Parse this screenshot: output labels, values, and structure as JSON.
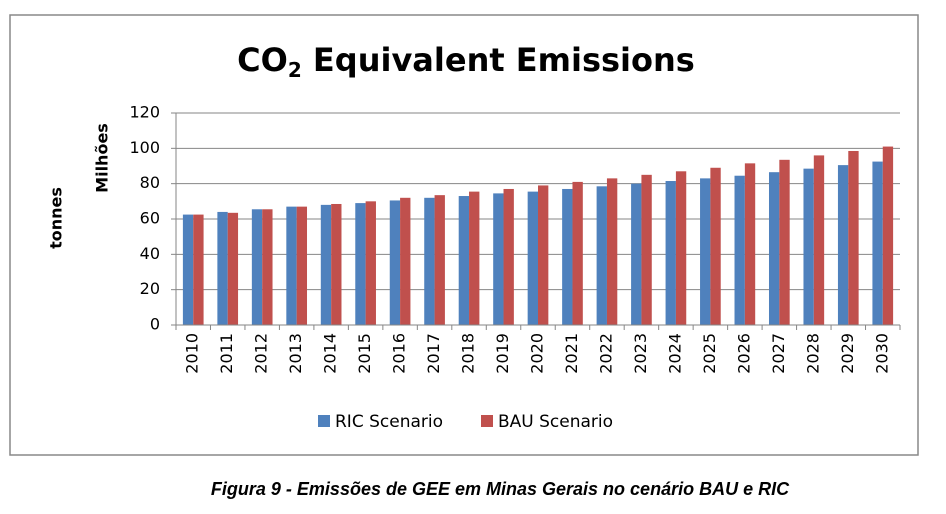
{
  "chart_data": {
    "type": "bar",
    "title_parts": [
      "CO",
      "2",
      " Equivalent Emissions"
    ],
    "y_label": "Milhões",
    "y_outer_label": "tonnes",
    "caption": "Figura 9 - Emissões de GEE em Minas Gerais no cenário BAU e RIC",
    "categories": [
      "2010",
      "2011",
      "2012",
      "2013",
      "2014",
      "2015",
      "2016",
      "2017",
      "2018",
      "2019",
      "2020",
      "2021",
      "2022",
      "2023",
      "2024",
      "2025",
      "2026",
      "2027",
      "2028",
      "2029",
      "2030"
    ],
    "series": [
      {
        "name": "RIC Scenario",
        "color": "#4f81bd",
        "values": [
          62.5,
          64,
          65.5,
          67,
          68,
          69,
          70.5,
          72,
          73,
          74.5,
          75.5,
          77,
          78.5,
          80,
          81.5,
          83,
          84.5,
          86.5,
          88.5,
          90.5,
          92.5
        ]
      },
      {
        "name": "BAU Scenario",
        "color": "#c0504d",
        "values": [
          62.5,
          63.5,
          65.5,
          67,
          68.5,
          70,
          72,
          73.5,
          75.5,
          77,
          79,
          81,
          83,
          85,
          87,
          89,
          91.5,
          93.5,
          96,
          98.5,
          101
        ]
      }
    ],
    "ylim": [
      0,
      120
    ],
    "yticks": [
      0,
      20,
      40,
      60,
      80,
      100,
      120
    ],
    "grid": true
  }
}
